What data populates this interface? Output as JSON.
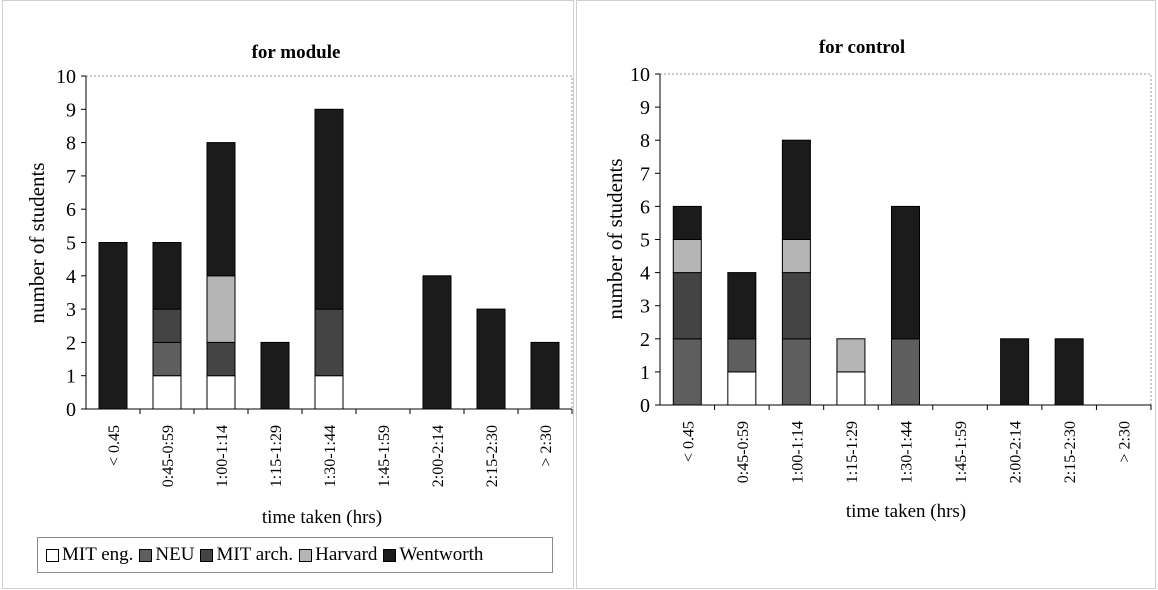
{
  "colors": {
    "MIT eng.": "#ffffff",
    "NEU": "#5e5e5e",
    "MIT arch.": "#444444",
    "Harvard": "#b5b5b5",
    "Wentworth": "#1b1b1b"
  },
  "legend": [
    {
      "label": "MIT eng.",
      "color": "#ffffff"
    },
    {
      "label": "NEU",
      "color": "#5e5e5e"
    },
    {
      "label": "MIT arch.",
      "color": "#444444"
    },
    {
      "label": "Harvard",
      "color": "#b5b5b5"
    },
    {
      "label": "Wentworth",
      "color": "#1b1b1b"
    }
  ],
  "chart_data": [
    {
      "type": "bar",
      "stacked": true,
      "title": "for module",
      "xlabel": "time taken (hrs)",
      "ylabel": "number of students",
      "ylim": [
        0,
        10
      ],
      "yticks": [
        0,
        1,
        2,
        3,
        4,
        5,
        6,
        7,
        8,
        9,
        10
      ],
      "grid": false,
      "categories": [
        "< 0.45",
        "0:45-0:59",
        "1:00-1:14",
        "1:15-1:29",
        "1:30-1:44",
        "1:45-1:59",
        "2:00-2:14",
        "2:15-2:30",
        "> 2:30"
      ],
      "series": [
        {
          "name": "MIT eng.",
          "values": [
            0,
            1,
            1,
            0,
            1,
            0,
            0,
            0,
            0
          ]
        },
        {
          "name": "NEU",
          "values": [
            0,
            1,
            0,
            0,
            0,
            0,
            0,
            0,
            0
          ]
        },
        {
          "name": "MIT arch.",
          "values": [
            0,
            1,
            1,
            0,
            2,
            0,
            0,
            0,
            0
          ]
        },
        {
          "name": "Harvard",
          "values": [
            0,
            0,
            2,
            0,
            0,
            0,
            0,
            0,
            0
          ]
        },
        {
          "name": "Wentworth",
          "values": [
            5,
            2,
            4,
            2,
            6,
            0,
            4,
            3,
            2
          ]
        }
      ]
    },
    {
      "type": "bar",
      "stacked": true,
      "title": "for control",
      "xlabel": "time taken (hrs)",
      "ylabel": "number of students",
      "ylim": [
        0,
        10
      ],
      "yticks": [
        0,
        1,
        2,
        3,
        4,
        5,
        6,
        7,
        8,
        9,
        10
      ],
      "grid": false,
      "categories": [
        "< 0.45",
        "0:45-0:59",
        "1:00-1:14",
        "1:15-1:29",
        "1:30-1:44",
        "1:45-1:59",
        "2:00-2:14",
        "2:15-2:30",
        "> 2:30"
      ],
      "series": [
        {
          "name": "MIT eng.",
          "values": [
            0,
            1,
            0,
            1,
            0,
            0,
            0,
            0,
            0
          ]
        },
        {
          "name": "NEU",
          "values": [
            2,
            1,
            2,
            0,
            2,
            0,
            0,
            0,
            0
          ]
        },
        {
          "name": "MIT arch.",
          "values": [
            2,
            0,
            2,
            0,
            0,
            0,
            0,
            0,
            0
          ]
        },
        {
          "name": "Harvard",
          "values": [
            1,
            0,
            1,
            1,
            0,
            0,
            0,
            0,
            0
          ]
        },
        {
          "name": "Wentworth",
          "values": [
            1,
            2,
            3,
            0,
            4,
            0,
            2,
            2,
            0
          ]
        }
      ]
    }
  ]
}
